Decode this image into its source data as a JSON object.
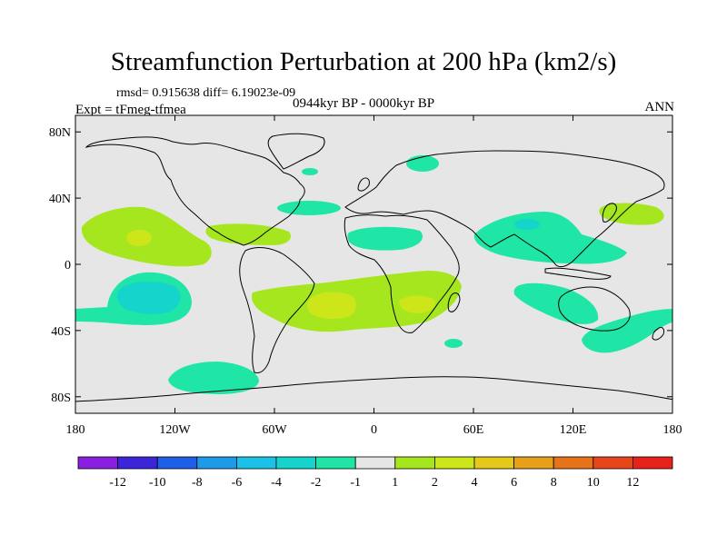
{
  "title": "Streamfunction Perturbation at 200 hPa (km2/s)",
  "stats": "rmsd= 0.915638 diff= 6.19023e-09",
  "experiment": "Expt = tFmeg-tfmea",
  "period": "0944kyr BP - 0000kyr BP",
  "season": "ANN",
  "chart_data": {
    "type": "heatmap",
    "projection": "cylindrical equidistant",
    "xlim": [
      -180,
      180
    ],
    "ylim": [
      -90,
      90
    ],
    "x_ticks": [
      {
        "value": -180,
        "label": "180"
      },
      {
        "value": -120,
        "label": "120W"
      },
      {
        "value": -60,
        "label": "60W"
      },
      {
        "value": 0,
        "label": "0"
      },
      {
        "value": 60,
        "label": "60E"
      },
      {
        "value": 120,
        "label": "120E"
      },
      {
        "value": 180,
        "label": "180"
      }
    ],
    "y_ticks": [
      {
        "value": 80,
        "label": "80N"
      },
      {
        "value": 40,
        "label": "40N"
      },
      {
        "value": 0,
        "label": "0"
      },
      {
        "value": -40,
        "label": "40S"
      },
      {
        "value": -80,
        "label": "80S"
      }
    ],
    "background_level": "-1 to 1",
    "colorbar": {
      "colors": [
        "#8a1fe0",
        "#3c24d8",
        "#1f5ee6",
        "#1d9be8",
        "#1bc1e6",
        "#14d4cc",
        "#1fe6a6",
        "#e6e6e6",
        "#a6e61f",
        "#cce61a",
        "#e6c81a",
        "#e6a01a",
        "#e6721a",
        "#e6461a",
        "#e6221a"
      ],
      "labels": [
        "-12",
        "-10",
        "-8",
        "-6",
        "-4",
        "-2",
        "-1",
        "1",
        "2",
        "4",
        "6",
        "8",
        "10",
        "12"
      ]
    },
    "contour_regions": [
      {
        "name": "north-pacific-positive",
        "level": "1 to 2",
        "center": [
          -138,
          20
        ],
        "color": "#a6e61f"
      },
      {
        "name": "north-pacific-core",
        "level": "2 to 4",
        "center": [
          -143,
          18
        ],
        "color": "#cce61a"
      },
      {
        "name": "caribbean-positive",
        "level": "1 to 2",
        "center": [
          -70,
          21
        ],
        "color": "#a6e61f"
      },
      {
        "name": "south-pacific-negative",
        "level": "-2 to -1",
        "center": [
          -150,
          -18
        ],
        "color": "#1fe6a6"
      },
      {
        "name": "south-pacific-core",
        "level": "-4 to -2",
        "center": [
          -145,
          -19
        ],
        "color": "#14d4cc"
      },
      {
        "name": "south-atlantic-positive",
        "level": "1 to 2",
        "center": [
          -10,
          -23
        ],
        "color": "#a6e61f"
      },
      {
        "name": "south-atlantic-core",
        "level": "2 to 4",
        "center": [
          -25,
          -21
        ],
        "color": "#cce61a"
      },
      {
        "name": "south-africa-core",
        "level": "2 to 4",
        "center": [
          25,
          -21
        ],
        "color": "#cce61a"
      },
      {
        "name": "southeast-pacific-negative",
        "level": "-2 to -1",
        "center": [
          -97,
          -65
        ],
        "color": "#1fe6a6"
      },
      {
        "name": "north-atlantic-negative",
        "level": "-2 to -1",
        "center": [
          -35,
          35
        ],
        "color": "#1fe6a6"
      },
      {
        "name": "iceland-negative",
        "level": "-2 to -1",
        "center": [
          -38,
          58
        ],
        "color": "#1fe6a6"
      },
      {
        "name": "scandinavia-negative",
        "level": "-2 to -1",
        "center": [
          30,
          62
        ],
        "color": "#1fe6a6"
      },
      {
        "name": "north-africa-negative",
        "level": "-2 to -1",
        "center": [
          8,
          18
        ],
        "color": "#1fe6a6"
      },
      {
        "name": "south-asia-negative",
        "level": "-2 to -1",
        "center": [
          95,
          22
        ],
        "color": "#1fe6a6"
      },
      {
        "name": "south-asia-core",
        "level": "-4 to -2",
        "center": [
          92,
          26
        ],
        "color": "#14d4cc"
      },
      {
        "name": "japan-positive",
        "level": "1 to 2",
        "center": [
          158,
          35
        ],
        "color": "#a6e61f"
      },
      {
        "name": "indian-ocean-negative",
        "level": "-2 to -1",
        "center": [
          102,
          -20
        ],
        "color": "#1fe6a6"
      },
      {
        "name": "australia-east-negative",
        "level": "-2 to -1",
        "center": [
          155,
          -40
        ],
        "color": "#1fe6a6"
      },
      {
        "name": "south-indian-small-negative",
        "level": "-2 to -1",
        "center": [
          48,
          -44
        ],
        "color": "#1fe6a6"
      }
    ]
  }
}
